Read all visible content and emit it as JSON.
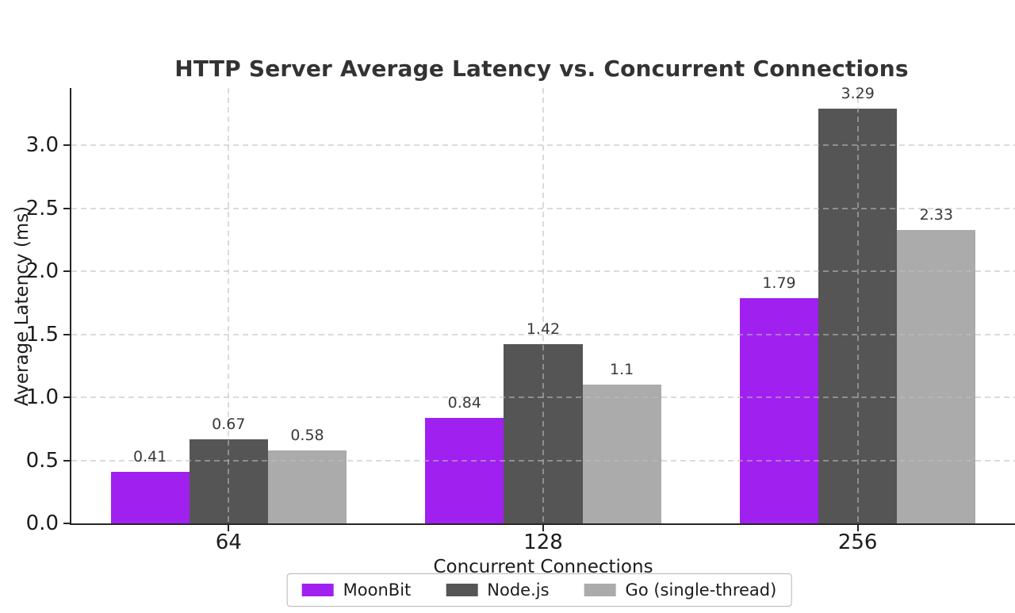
{
  "chart_data": {
    "type": "bar",
    "title": "HTTP Server Average Latency vs. Concurrent Connections",
    "xlabel": "Concurrent Connections",
    "ylabel": "Average Latency (ms)",
    "categories": [
      "64",
      "128",
      "256"
    ],
    "series": [
      {
        "name": "MoonBit",
        "color": "#A020F0",
        "values": [
          0.41,
          0.84,
          1.79
        ],
        "labels": [
          "0.41",
          "0.84",
          "1.79"
        ]
      },
      {
        "name": "Node.js",
        "color": "#555555",
        "values": [
          0.67,
          1.42,
          3.29
        ],
        "labels": [
          "0.67",
          "1.42",
          "3.29"
        ]
      },
      {
        "name": "Go (single-thread)",
        "color": "#ABABAB",
        "values": [
          0.58,
          1.1,
          2.33
        ],
        "labels": [
          "0.58",
          "1.1",
          "2.33"
        ]
      }
    ],
    "ylim": [
      0,
      3.4545
    ],
    "yticks": [
      {
        "value": 0.0,
        "label": "0.0"
      },
      {
        "value": 0.5,
        "label": "0.5"
      },
      {
        "value": 1.0,
        "label": "1.0"
      },
      {
        "value": 1.5,
        "label": "1.5"
      },
      {
        "value": 2.0,
        "label": "2.0"
      },
      {
        "value": 2.5,
        "label": "2.5"
      },
      {
        "value": 3.0,
        "label": "3.0"
      }
    ],
    "bar_width_fraction": 0.25,
    "grid": "dashed",
    "grid_color": "#DCDCDC",
    "legend_position": "bottom-center",
    "background_color": "#FFFFFF",
    "spine_color": "#262626"
  }
}
